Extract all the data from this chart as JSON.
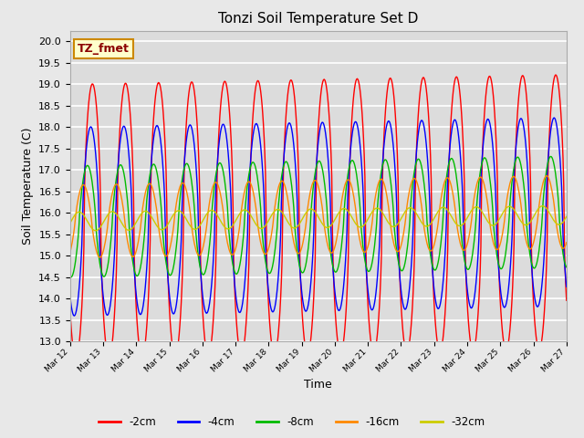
{
  "title": "Tonzi Soil Temperature Set D",
  "xlabel": "Time",
  "ylabel": "Soil Temperature (C)",
  "ylim": [
    13.0,
    20.25
  ],
  "yticks": [
    13.0,
    13.5,
    14.0,
    14.5,
    15.0,
    15.5,
    16.0,
    16.5,
    17.0,
    17.5,
    18.0,
    18.5,
    19.0,
    19.5,
    20.0
  ],
  "colors": {
    "-2cm": "#ff0000",
    "-4cm": "#0000ff",
    "-8cm": "#00bb00",
    "-16cm": "#ff8800",
    "-32cm": "#cccc00"
  },
  "legend_labels": [
    "-2cm",
    "-4cm",
    "-8cm",
    "-16cm",
    "-32cm"
  ],
  "annotation_text": "TZ_fmet",
  "annotation_bg": "#ffffcc",
  "annotation_border": "#cc8800",
  "background_color": "#e8e8e8",
  "plot_bg": "#dcdcdc",
  "n_points": 720,
  "x_start": 12.0,
  "x_end": 27.0,
  "xtick_positions": [
    12,
    13,
    14,
    15,
    16,
    17,
    18,
    19,
    20,
    21,
    22,
    23,
    24,
    25,
    26,
    27
  ],
  "xtick_labels": [
    "Mar 12",
    "Mar 13",
    "Mar 14",
    "Mar 15",
    "Mar 16",
    "Mar 17",
    "Mar 18",
    "Mar 19",
    "Mar 20",
    "Mar 21",
    "Mar 22",
    "Mar 23",
    "Mar 24",
    "Mar 25",
    "Mar 26",
    "Mar 27"
  ],
  "amp_2": 3.2,
  "amp_4": 2.2,
  "amp_8": 1.3,
  "amp_16": 0.85,
  "amp_32": 0.22,
  "base_mean": 16.5,
  "base_trend": 0.0
}
